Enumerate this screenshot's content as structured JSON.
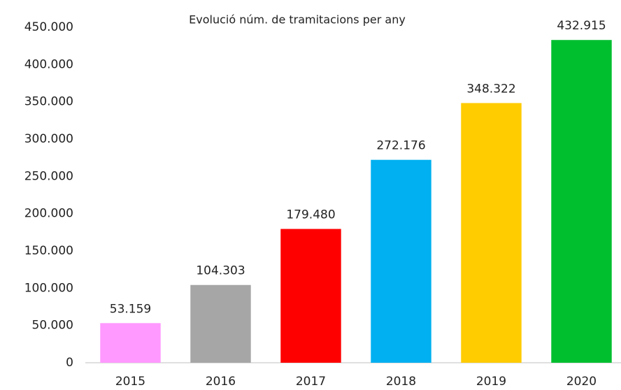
{
  "chart_data": {
    "type": "bar",
    "title": "Evolució núm. de tramitacions per any",
    "categories": [
      "2015",
      "2016",
      "2017",
      "2018",
      "2019",
      "2020"
    ],
    "values": [
      53159,
      104303,
      179480,
      272176,
      348322,
      432915
    ],
    "value_labels": [
      "53.159",
      "104.303",
      "179.480",
      "272.176",
      "348.322",
      "432.915"
    ],
    "colors": [
      "#ff99ff",
      "#a6a6a6",
      "#ff0000",
      "#00b0f0",
      "#ffcc00",
      "#00bf2f"
    ],
    "ylim": [
      0,
      450000
    ],
    "yticks": [
      0,
      {
        "value": 50000,
        "label": "50.000"
      },
      {
        "value": 100000,
        "label": "100.000"
      },
      {
        "value": 150000,
        "label": "150.000"
      },
      {
        "value": 200000,
        "label": "200.000"
      },
      {
        "value": 250000,
        "label": "250.000"
      },
      {
        "value": 300000,
        "label": "300.000"
      },
      {
        "value": 350000,
        "label": "350.000"
      },
      {
        "value": 400000,
        "label": "400.000"
      },
      {
        "value": 450000,
        "label": "450.000"
      }
    ],
    "grid": false
  }
}
